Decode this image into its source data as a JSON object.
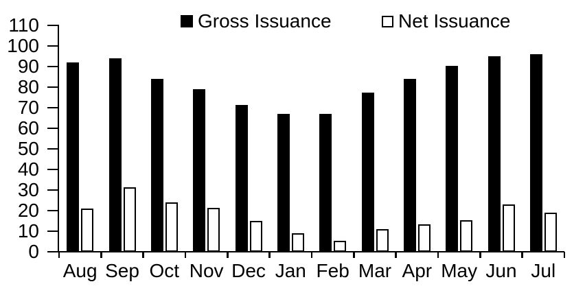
{
  "chart_data": {
    "type": "bar",
    "title": "",
    "categories": [
      "Aug",
      "Sep",
      "Oct",
      "Nov",
      "Dec",
      "Jan",
      "Feb",
      "Mar",
      "Apr",
      "May",
      "Jun",
      "Jul"
    ],
    "series": [
      {
        "name": "Gross Issuance",
        "style": "solid",
        "fill": "#000000",
        "values": [
          92,
          94,
          84,
          79,
          71.5,
          67,
          67,
          77.5,
          84,
          90.5,
          95,
          96
        ]
      },
      {
        "name": "Net Issuance",
        "style": "hollow",
        "fill": "#ffffff",
        "border": "#000000",
        "values": [
          21,
          31.5,
          24,
          21.5,
          15,
          9,
          5.5,
          11,
          13.5,
          15.5,
          23,
          19
        ]
      }
    ],
    "ylim": [
      0,
      110
    ],
    "ytick_step": 10,
    "ytick_labels": [
      "0",
      "10",
      "20",
      "30",
      "40",
      "50",
      "60",
      "70",
      "80",
      "90",
      "100",
      "110"
    ],
    "xlabel": "",
    "ylabel": "",
    "grid": false,
    "legend_position": "top",
    "axis_color": "#000000",
    "background_color": "#ffffff"
  }
}
